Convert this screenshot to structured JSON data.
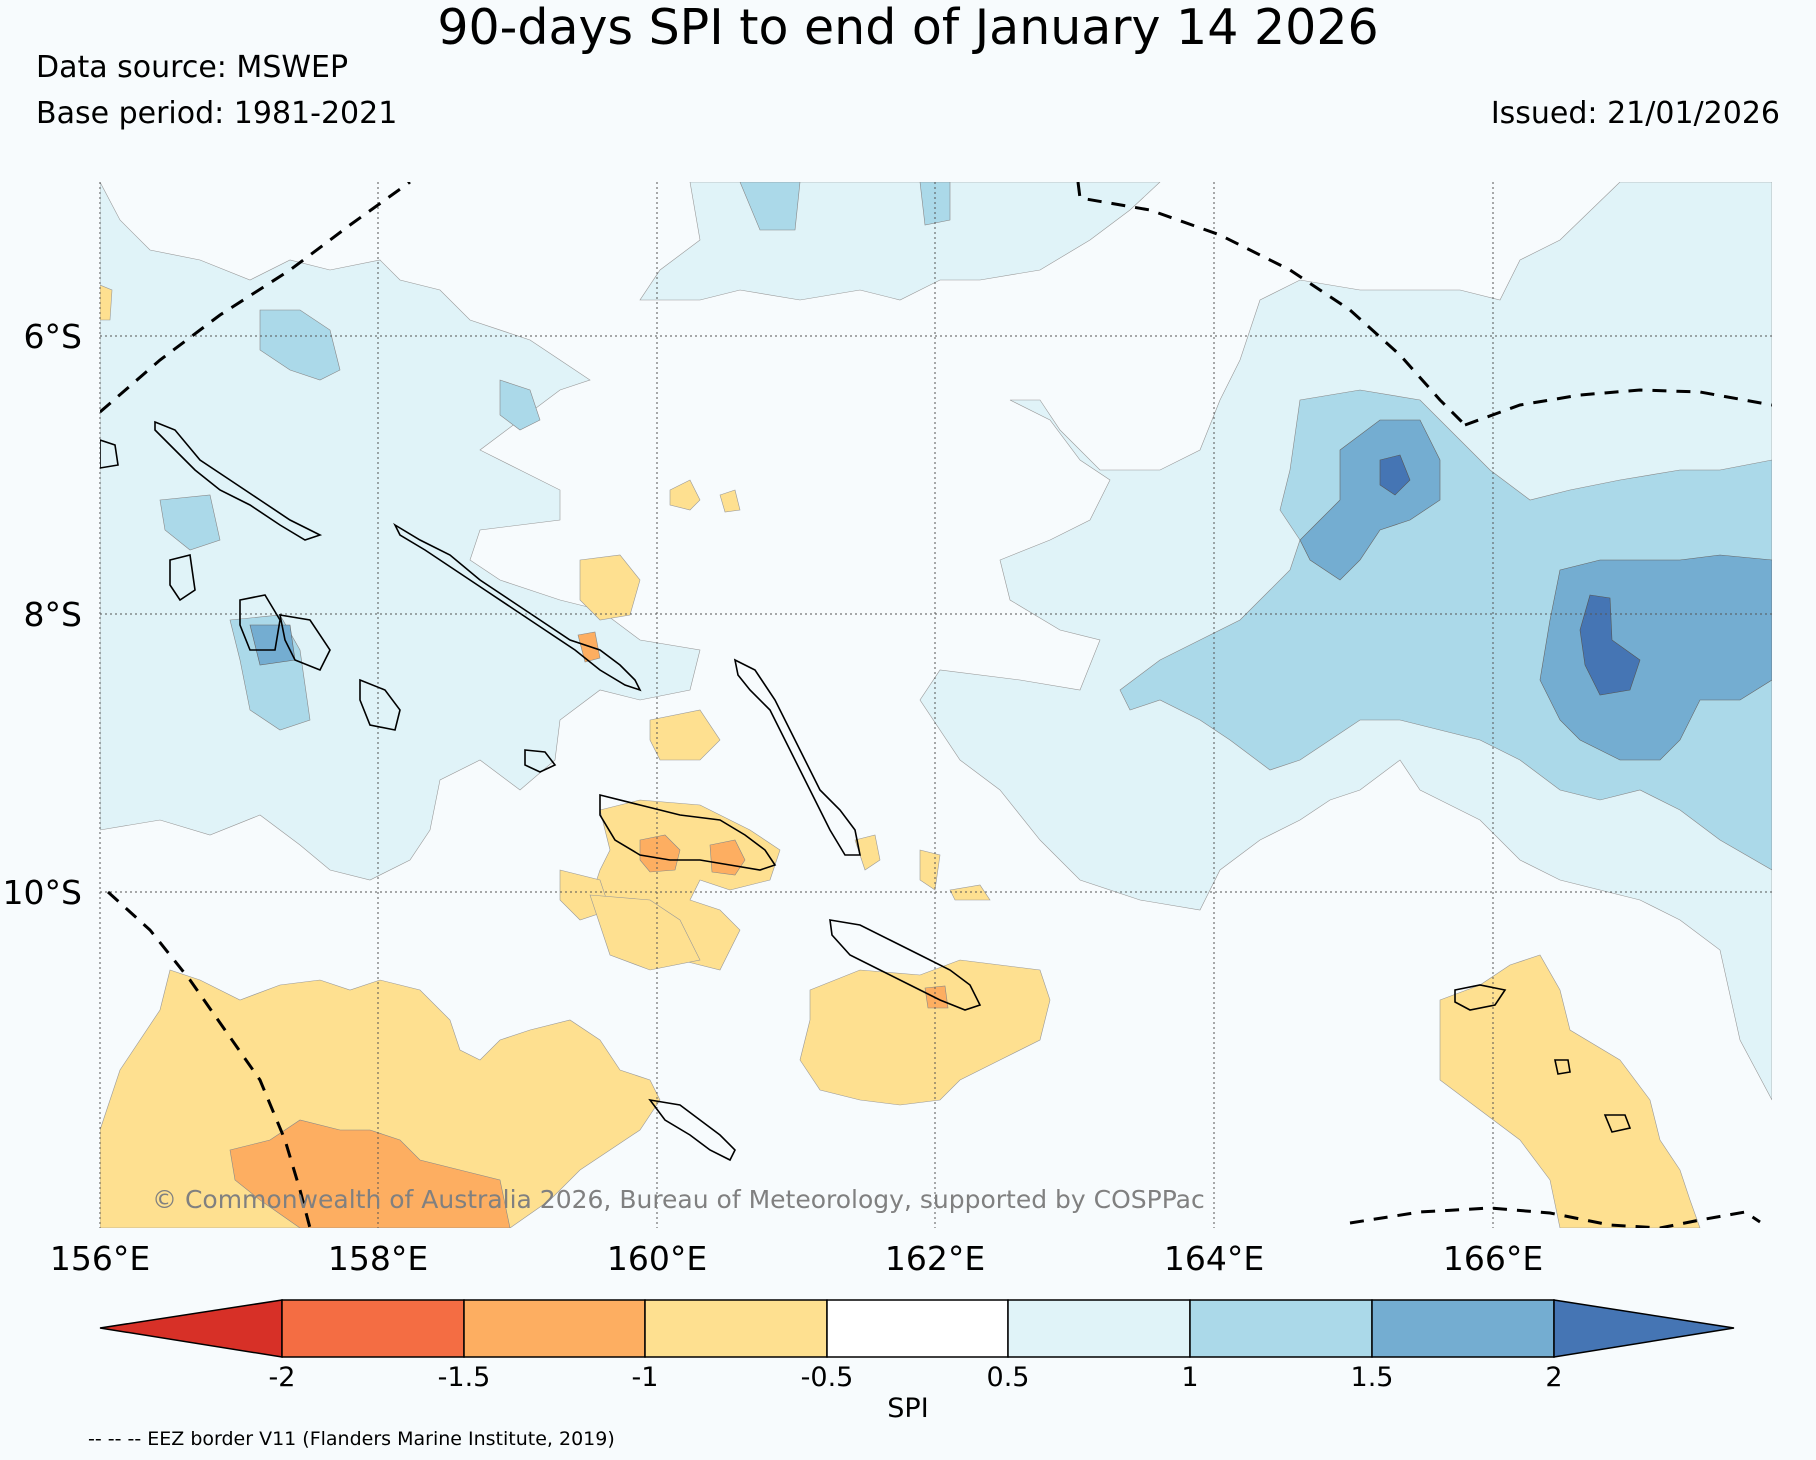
{
  "title": "90-days SPI to end of January 14 2026",
  "data_source": "Data source: MSWEP",
  "base_period": "Base period: 1981-2021",
  "issued": "Issued: 21/01/2026",
  "copyright": "© Commonwealth of Australia 2026, Bureau of Meteorology, supported by COSPPac",
  "footnote": "-- -- -- EEZ border V11 (Flanders Marine Institute, 2019)",
  "lat_labels": [
    "6°S",
    "8°S",
    "10°S"
  ],
  "lon_labels": [
    "156°E",
    "158°E",
    "160°E",
    "162°E",
    "164°E",
    "166°E"
  ],
  "colorbar": {
    "label": "SPI",
    "ticks": [
      "-2",
      "-1.5",
      "-1",
      "-0.5",
      "0.5",
      "1",
      "1.5",
      "2"
    ],
    "colors": [
      "#d73027",
      "#f46d43",
      "#fdae61",
      "#fee090",
      "#ffffff",
      "#e0f3f8",
      "#abd9e9",
      "#74add1",
      "#4575b4"
    ]
  },
  "palette": {
    "background": "#f7fbfd",
    "dry_light": "#fee090",
    "dry_mid": "#fdae61",
    "dry_strong": "#f46d43",
    "wet_light": "#e0f3f8",
    "wet_mid": "#abd9e9",
    "wet_strong": "#74add1",
    "wet_very": "#4575b4"
  }
}
